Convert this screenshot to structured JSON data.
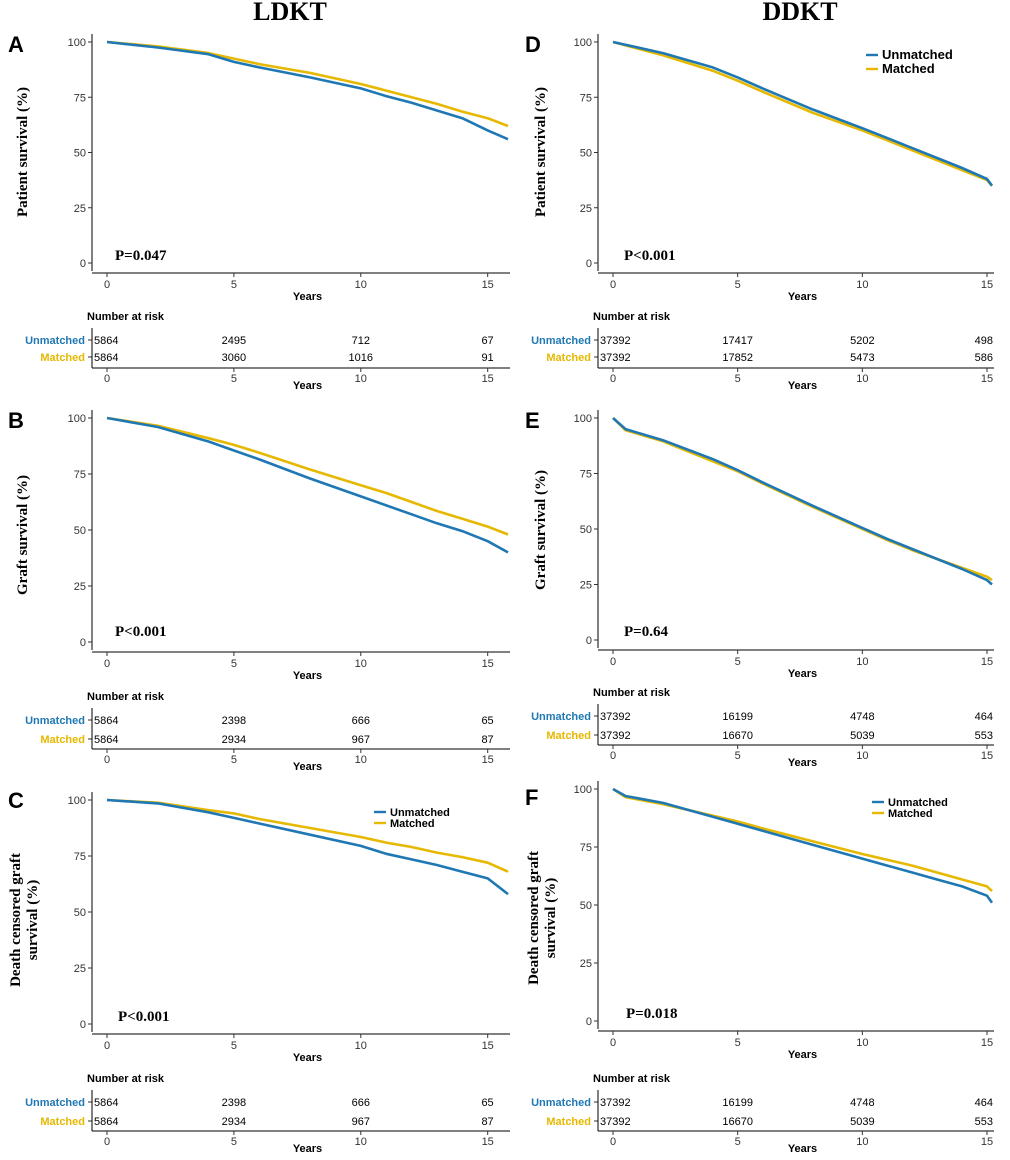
{
  "headers": {
    "left": "LDKT",
    "right": "DDKT"
  },
  "colors": {
    "unmatched": "#1f78b4",
    "matched": "#e6b800",
    "axis": "#000000"
  },
  "series_names": {
    "unmatched": "Unmatched",
    "matched": "Matched"
  },
  "risk_title": "Number at risk",
  "risk_xlabel": "Years",
  "chart_data": [
    {
      "id": "A",
      "type": "line",
      "ylabel_lines": [
        "Patient survival (%)"
      ],
      "pvalue": "P=0.047",
      "xlabel": "Years",
      "xlim": [
        0,
        15.8
      ],
      "ylim": [
        0,
        100
      ],
      "xticks": [
        0,
        5,
        10,
        15
      ],
      "yticks": [
        0,
        25,
        50,
        75,
        100
      ],
      "legend": null,
      "series": [
        {
          "name": "Unmatched",
          "x": [
            0,
            2,
            4,
            5,
            6,
            8,
            10,
            11,
            12,
            13,
            14,
            15,
            15.8
          ],
          "values": [
            100,
            97.5,
            94.5,
            91,
            88.5,
            84,
            79,
            75.5,
            72.5,
            69,
            65.5,
            60,
            56
          ]
        },
        {
          "name": "Matched",
          "x": [
            0,
            2,
            4,
            5,
            6,
            8,
            10,
            11,
            12,
            13,
            14,
            15,
            15.8
          ],
          "values": [
            100,
            98,
            95,
            92.5,
            90,
            86,
            81,
            78,
            75,
            72,
            68.5,
            65.5,
            62
          ]
        }
      ],
      "risk": {
        "unmatched": [
          5864,
          2495,
          712,
          67
        ],
        "matched": [
          5864,
          3060,
          1016,
          91
        ]
      }
    },
    {
      "id": "B",
      "type": "line",
      "ylabel_lines": [
        "Graft survival (%)"
      ],
      "pvalue": "P<0.001",
      "xlabel": "Years",
      "xlim": [
        0,
        15.8
      ],
      "ylim": [
        0,
        100
      ],
      "xticks": [
        0,
        5,
        10,
        15
      ],
      "yticks": [
        0,
        25,
        50,
        75,
        100
      ],
      "legend": null,
      "series": [
        {
          "name": "Unmatched",
          "x": [
            0,
            2,
            4,
            5,
            6,
            8,
            10,
            11,
            12,
            13,
            14,
            15,
            15.8
          ],
          "values": [
            100,
            96,
            89.5,
            85.5,
            81.5,
            73,
            65,
            61,
            57,
            53,
            49.5,
            45,
            40
          ]
        },
        {
          "name": "Matched",
          "x": [
            0,
            2,
            4,
            5,
            6,
            8,
            10,
            11,
            12,
            13,
            14,
            15,
            15.8
          ],
          "values": [
            100,
            96.5,
            91,
            88,
            84.5,
            77,
            70,
            66.5,
            62.5,
            58.5,
            55,
            51.5,
            48
          ]
        }
      ],
      "risk": {
        "unmatched": [
          5864,
          2398,
          666,
          65
        ],
        "matched": [
          5864,
          2934,
          967,
          87
        ]
      }
    },
    {
      "id": "C",
      "type": "line",
      "ylabel_lines": [
        "Death censored graft",
        "survival (%)"
      ],
      "pvalue": "P<0.001",
      "xlabel": "Years",
      "xlim": [
        0,
        15.8
      ],
      "ylim": [
        0,
        100
      ],
      "xticks": [
        0,
        5,
        10,
        15
      ],
      "yticks": [
        0,
        25,
        50,
        75,
        100
      ],
      "legend": "top-right",
      "series": [
        {
          "name": "Unmatched",
          "x": [
            0,
            2,
            4,
            5,
            6,
            8,
            10,
            11,
            12,
            13,
            14,
            15,
            15.8
          ],
          "values": [
            100,
            98.5,
            94.5,
            92,
            89.5,
            84.5,
            79.5,
            76,
            73.5,
            71,
            68,
            65,
            58
          ]
        },
        {
          "name": "Matched",
          "x": [
            0,
            2,
            4,
            5,
            6,
            8,
            10,
            11,
            12,
            13,
            14,
            15,
            15.8
          ],
          "values": [
            100,
            98.8,
            95.5,
            94,
            91.5,
            87.5,
            83.5,
            81,
            79,
            76.5,
            74.5,
            72,
            68
          ]
        }
      ],
      "risk": {
        "unmatched": [
          5864,
          2398,
          666,
          65
        ],
        "matched": [
          5864,
          2934,
          967,
          87
        ]
      }
    },
    {
      "id": "D",
      "type": "line",
      "ylabel_lines": [
        "Patient survival (%)"
      ],
      "pvalue": "P<0.001",
      "xlabel": "Years",
      "xlim": [
        0,
        15.2
      ],
      "ylim": [
        0,
        100
      ],
      "xticks": [
        0,
        5,
        10,
        15
      ],
      "yticks": [
        0,
        25,
        50,
        75,
        100
      ],
      "legend": "top-right",
      "series": [
        {
          "name": "Unmatched",
          "x": [
            0,
            2,
            4,
            5,
            6,
            8,
            10,
            11,
            12,
            13,
            14,
            15,
            15.2
          ],
          "values": [
            100,
            95,
            88.5,
            84,
            79,
            69.5,
            61,
            56.5,
            52,
            47.5,
            43,
            38,
            35
          ]
        },
        {
          "name": "Matched",
          "x": [
            0,
            2,
            4,
            5,
            6,
            8,
            10,
            11,
            12,
            13,
            14,
            15,
            15.2
          ],
          "values": [
            100,
            94,
            87,
            82.5,
            77.5,
            68,
            60,
            55.5,
            51,
            46.5,
            42,
            37.5,
            35
          ]
        }
      ],
      "risk": {
        "unmatched": [
          37392,
          17417,
          5202,
          498
        ],
        "matched": [
          37392,
          17852,
          5473,
          586
        ]
      }
    },
    {
      "id": "E",
      "type": "line",
      "ylabel_lines": [
        "Graft survival (%)"
      ],
      "pvalue": "P=0.64",
      "xlabel": "Years",
      "xlim": [
        0,
        15.2
      ],
      "ylim": [
        0,
        100
      ],
      "xticks": [
        0,
        5,
        10,
        15
      ],
      "yticks": [
        0,
        25,
        50,
        75,
        100
      ],
      "legend": null,
      "series": [
        {
          "name": "Unmatched",
          "x": [
            0,
            0.5,
            2,
            4,
            5,
            6,
            8,
            10,
            11,
            12,
            13,
            14,
            15,
            15.2
          ],
          "values": [
            100,
            95,
            90,
            81.5,
            76.5,
            71,
            60.5,
            50.5,
            45.5,
            41,
            36.5,
            32,
            27,
            25
          ]
        },
        {
          "name": "Matched",
          "x": [
            0,
            0.5,
            2,
            4,
            5,
            6,
            8,
            10,
            11,
            12,
            13,
            14,
            15,
            15.2
          ],
          "values": [
            100,
            94.5,
            89.5,
            80.5,
            76,
            70.5,
            60,
            50,
            45,
            40.5,
            36.5,
            32.5,
            28.5,
            27
          ]
        }
      ],
      "risk": {
        "unmatched": [
          37392,
          16199,
          4748,
          464
        ],
        "matched": [
          37392,
          16670,
          5039,
          553
        ]
      }
    },
    {
      "id": "F",
      "type": "line",
      "ylabel_lines": [
        "Death censored graft",
        "survival (%)"
      ],
      "pvalue": "P=0.018",
      "xlabel": "Years",
      "xlim": [
        0,
        15.2
      ],
      "ylim": [
        0,
        100
      ],
      "xticks": [
        0,
        5,
        10,
        15
      ],
      "yticks": [
        0,
        25,
        50,
        75,
        100
      ],
      "legend": "top-right",
      "series": [
        {
          "name": "Unmatched",
          "x": [
            0,
            0.5,
            2,
            4,
            5,
            6,
            8,
            10,
            11,
            12,
            13,
            14,
            15,
            15.2
          ],
          "values": [
            100,
            97,
            94,
            88,
            85,
            82,
            76,
            70,
            67,
            64,
            61,
            58,
            54,
            51
          ]
        },
        {
          "name": "Matched",
          "x": [
            0,
            0.5,
            2,
            4,
            5,
            6,
            8,
            10,
            11,
            12,
            13,
            14,
            15,
            15.2
          ],
          "values": [
            100,
            96.5,
            93.5,
            88.5,
            86,
            83,
            77.5,
            72,
            69.5,
            67,
            64,
            61,
            58,
            56
          ]
        }
      ],
      "risk": {
        "unmatched": [
          37392,
          16199,
          4748,
          464
        ],
        "matched": [
          37392,
          16670,
          5039,
          553
        ]
      }
    }
  ]
}
